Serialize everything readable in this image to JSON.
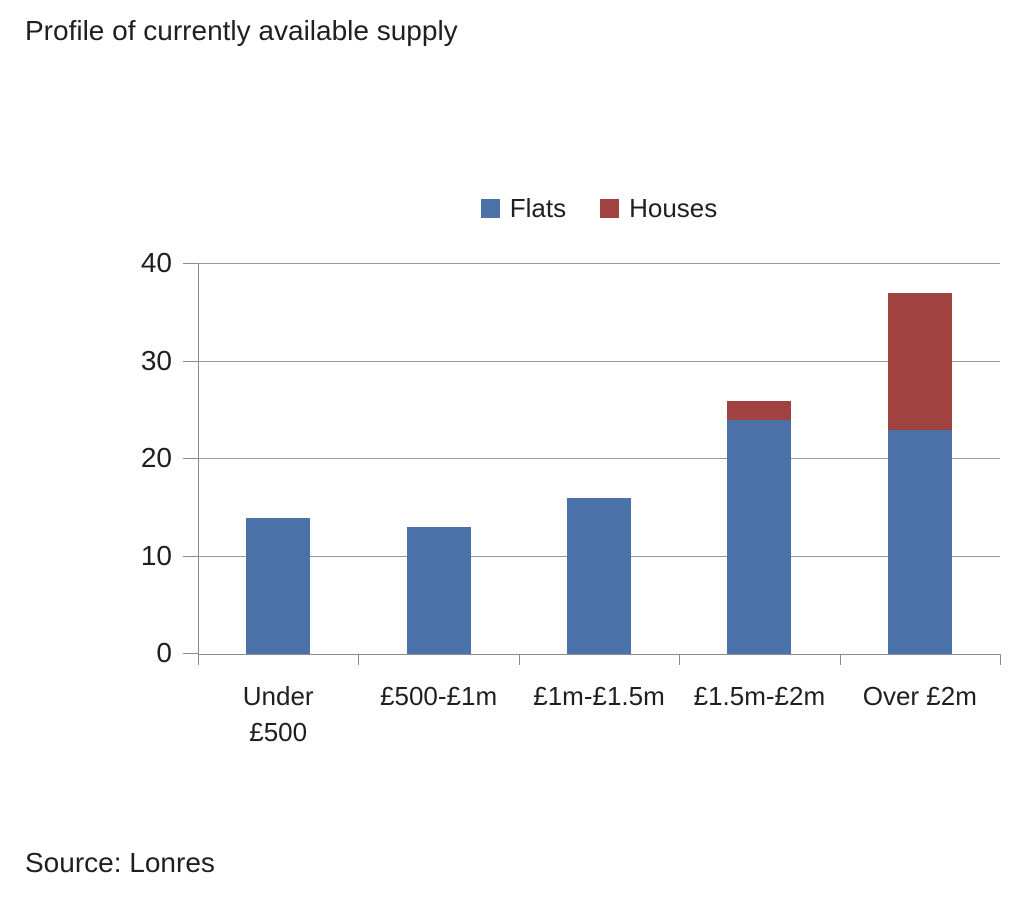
{
  "chart": {
    "title": "Profile of currently available supply",
    "source": "Source: Lonres"
  },
  "colors": {
    "flats": "#4A72A8",
    "houses": "#A04240",
    "gridline": "#9a9a9a",
    "axis": "#8c8c8c",
    "text": "#1f1f1f"
  },
  "chart_data": {
    "type": "bar",
    "stacked": true,
    "title": "Profile of currently available supply",
    "source": "Source: Lonres",
    "categories": [
      "Under\n£500",
      "£500-£1m",
      "£1m-£1.5m",
      "£1.5m-£2m",
      "Over £2m"
    ],
    "series": [
      {
        "name": "Flats",
        "color": "#4A72A8",
        "values": [
          14,
          13,
          16,
          24,
          23
        ]
      },
      {
        "name": "Houses",
        "color": "#A04240",
        "values": [
          0,
          0,
          0,
          2,
          14
        ]
      }
    ],
    "xlabel": "",
    "ylabel": "",
    "ylim": [
      0,
      40
    ],
    "y_ticks": [
      0,
      10,
      20,
      30,
      40
    ],
    "grid": true,
    "legend_position": "top-center"
  }
}
